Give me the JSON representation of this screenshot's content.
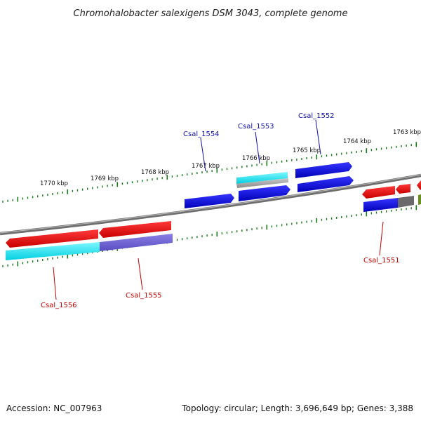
{
  "title": "Chromohalobacter salexigens DSM 3043, complete genome",
  "footer": {
    "accession": "Accession: NC_007963",
    "summary": "Topology: circular; Length: 3,696,649 bp; Genes: 3,388"
  },
  "ruler_labels": [
    "1770 kbp",
    "1769 kbp",
    "1768 kbp",
    "1767 kbp",
    "1766 kbp",
    "1765 kbp",
    "1764 kbp",
    "1763 kbp"
  ],
  "gene_labels_top": [
    "Csal_1554",
    "Csal_1553",
    "Csal_1552"
  ],
  "gene_labels_bottom": [
    "Csal_1556",
    "Csal_1555",
    "Csal_1551"
  ],
  "colors": {
    "forward_cds": "#0000dd",
    "reverse_cds": "#ee0000",
    "rna": "#00e5ee",
    "other_feature": "#6a5acd",
    "gene_bar": "#8a8a8a",
    "ruler_tick": "#1a7a1a",
    "backbone": "#808080"
  }
}
